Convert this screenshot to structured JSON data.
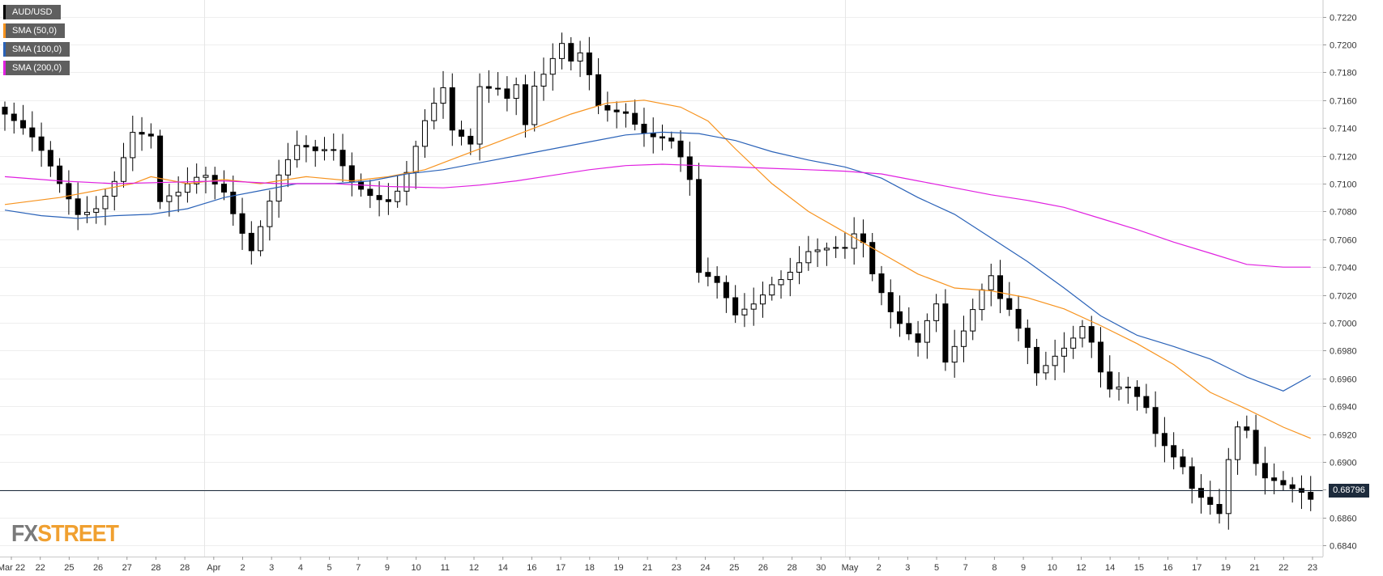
{
  "legend": {
    "items": [
      {
        "label": "AUD/USD",
        "color": "#000000"
      },
      {
        "label": "SMA (50,0)",
        "color": "#f7931e"
      },
      {
        "label": "SMA (100,0)",
        "color": "#2a62b8"
      },
      {
        "label": "SMA (200,0)",
        "color": "#e020e0"
      }
    ]
  },
  "logo": {
    "fx": "FX",
    "street": "STREET"
  },
  "current_price": {
    "label": "0.68796",
    "value": 0.68796
  },
  "chart_data": {
    "type": "candlestick",
    "symbol": "AUD/USD",
    "ylim": [
      0.6832,
      0.7232
    ],
    "yticks": [
      "0.7220",
      "0.7200",
      "0.7180",
      "0.7160",
      "0.7140",
      "0.7120",
      "0.7100",
      "0.7080",
      "0.7060",
      "0.7040",
      "0.7020",
      "0.7000",
      "0.6980",
      "0.6960",
      "0.6940",
      "0.6920",
      "0.6900",
      "0.6880",
      "0.6860",
      "0.6840"
    ],
    "xticks": [
      "Mar 22",
      "22",
      "25",
      "26",
      "27",
      "28",
      "28",
      "Apr",
      "2",
      "3",
      "4",
      "5",
      "7",
      "9",
      "10",
      "11",
      "12",
      "14",
      "16",
      "17",
      "18",
      "19",
      "21",
      "23",
      "24",
      "25",
      "26",
      "28",
      "30",
      "May",
      "2",
      "3",
      "5",
      "7",
      "8",
      "9",
      "10",
      "12",
      "14",
      "15",
      "16",
      "17",
      "19",
      "21",
      "22",
      "23"
    ],
    "gridlines": true,
    "close_path": [
      [
        0,
        0.715
      ],
      [
        3,
        0.7125
      ],
      [
        6,
        0.7095
      ],
      [
        8,
        0.708
      ],
      [
        10,
        0.709
      ],
      [
        12,
        0.711
      ],
      [
        14,
        0.714
      ],
      [
        16,
        0.713
      ],
      [
        17,
        0.708
      ],
      [
        19,
        0.7085
      ],
      [
        21,
        0.71
      ],
      [
        22,
        0.7105
      ],
      [
        24,
        0.71
      ],
      [
        27,
        0.706
      ],
      [
        29,
        0.709
      ],
      [
        30,
        0.7105
      ],
      [
        32,
        0.712
      ],
      [
        34,
        0.7115
      ],
      [
        36,
        0.712
      ],
      [
        38,
        0.7105
      ],
      [
        40,
        0.71
      ],
      [
        42,
        0.7095
      ],
      [
        43,
        0.71
      ],
      [
        44,
        0.711
      ],
      [
        46,
        0.714
      ],
      [
        48,
        0.716
      ],
      [
        49,
        0.713
      ],
      [
        51,
        0.7125
      ],
      [
        52,
        0.717
      ],
      [
        54,
        0.7175
      ],
      [
        55,
        0.717
      ],
      [
        56,
        0.718
      ],
      [
        57,
        0.715
      ],
      [
        58,
        0.7175
      ],
      [
        59,
        0.718
      ],
      [
        61,
        0.7195
      ],
      [
        62,
        0.718
      ],
      [
        63,
        0.7185
      ],
      [
        64,
        0.717
      ],
      [
        65,
        0.715
      ],
      [
        66,
        0.715
      ],
      [
        68,
        0.7155
      ],
      [
        70,
        0.7145
      ],
      [
        72,
        0.714
      ],
      [
        73,
        0.7135
      ],
      [
        74,
        0.712
      ],
      [
        75,
        0.71
      ],
      [
        76,
        0.703
      ],
      [
        78,
        0.702
      ],
      [
        80,
        0.7
      ],
      [
        82,
        0.7015
      ],
      [
        84,
        0.7035
      ],
      [
        86,
        0.7045
      ],
      [
        88,
        0.7055
      ],
      [
        90,
        0.705
      ],
      [
        92,
        0.7045
      ],
      [
        93,
        0.7055
      ],
      [
        94,
        0.705
      ],
      [
        95,
        0.703
      ],
      [
        97,
        0.701
      ],
      [
        99,
        0.7
      ],
      [
        100,
        0.6995
      ],
      [
        101,
        0.701
      ],
      [
        102,
        0.702
      ],
      [
        103,
        0.6975
      ],
      [
        105,
        0.699
      ],
      [
        107,
        0.7015
      ],
      [
        108,
        0.7025
      ],
      [
        109,
        0.701
      ],
      [
        110,
        0.7005
      ],
      [
        112,
        0.6985
      ],
      [
        113,
        0.697
      ],
      [
        115,
        0.6985
      ],
      [
        117,
        0.6995
      ],
      [
        118,
        0.7
      ],
      [
        119,
        0.6985
      ],
      [
        120,
        0.696
      ],
      [
        121,
        0.6945
      ],
      [
        123,
        0.6945
      ],
      [
        125,
        0.6935
      ],
      [
        126,
        0.692
      ],
      [
        127,
        0.6915
      ],
      [
        129,
        0.6905
      ],
      [
        130,
        0.689
      ],
      [
        132,
        0.6875
      ],
      [
        133,
        0.6865
      ],
      [
        134,
        0.69
      ],
      [
        135,
        0.692
      ],
      [
        136,
        0.6915
      ],
      [
        137,
        0.689
      ],
      [
        138,
        0.688
      ],
      [
        140,
        0.688
      ],
      [
        142,
        0.6882
      ],
      [
        143,
        0.688
      ]
    ],
    "series": [
      {
        "name": "SMA (50,0)",
        "color": "#f7931e",
        "points": [
          [
            0,
            0.7085
          ],
          [
            6,
            0.709
          ],
          [
            10,
            0.7095
          ],
          [
            14,
            0.71
          ],
          [
            16,
            0.7105
          ],
          [
            20,
            0.71
          ],
          [
            24,
            0.7103
          ],
          [
            28,
            0.71
          ],
          [
            33,
            0.7105
          ],
          [
            38,
            0.7102
          ],
          [
            42,
            0.7105
          ],
          [
            46,
            0.711
          ],
          [
            50,
            0.712
          ],
          [
            54,
            0.713
          ],
          [
            58,
            0.714
          ],
          [
            62,
            0.715
          ],
          [
            66,
            0.7158
          ],
          [
            70,
            0.716
          ],
          [
            74,
            0.7155
          ],
          [
            77,
            0.7145
          ],
          [
            80,
            0.7125
          ],
          [
            84,
            0.71
          ],
          [
            88,
            0.708
          ],
          [
            92,
            0.7065
          ],
          [
            96,
            0.705
          ],
          [
            100,
            0.7035
          ],
          [
            104,
            0.7025
          ],
          [
            108,
            0.7023
          ],
          [
            112,
            0.7018
          ],
          [
            116,
            0.701
          ],
          [
            120,
            0.6998
          ],
          [
            124,
            0.6985
          ],
          [
            128,
            0.697
          ],
          [
            132,
            0.695
          ],
          [
            136,
            0.6938
          ],
          [
            140,
            0.6925
          ],
          [
            143,
            0.6917
          ]
        ]
      },
      {
        "name": "SMA (100,0)",
        "color": "#2a62b8",
        "points": [
          [
            0,
            0.7081
          ],
          [
            4,
            0.7077
          ],
          [
            8,
            0.7075
          ],
          [
            12,
            0.7077
          ],
          [
            16,
            0.7078
          ],
          [
            20,
            0.7082
          ],
          [
            24,
            0.709
          ],
          [
            28,
            0.7095
          ],
          [
            32,
            0.71
          ],
          [
            36,
            0.71
          ],
          [
            40,
            0.7102
          ],
          [
            44,
            0.7107
          ],
          [
            48,
            0.711
          ],
          [
            52,
            0.7115
          ],
          [
            56,
            0.712
          ],
          [
            60,
            0.7125
          ],
          [
            64,
            0.713
          ],
          [
            68,
            0.7135
          ],
          [
            72,
            0.7137
          ],
          [
            76,
            0.7136
          ],
          [
            80,
            0.7131
          ],
          [
            84,
            0.7123
          ],
          [
            88,
            0.7117
          ],
          [
            92,
            0.7112
          ],
          [
            96,
            0.7104
          ],
          [
            100,
            0.709
          ],
          [
            104,
            0.7078
          ],
          [
            108,
            0.7061
          ],
          [
            112,
            0.7044
          ],
          [
            116,
            0.7025
          ],
          [
            120,
            0.7005
          ],
          [
            124,
            0.6991
          ],
          [
            128,
            0.6983
          ],
          [
            132,
            0.6974
          ],
          [
            136,
            0.6961
          ],
          [
            140,
            0.6951
          ],
          [
            143,
            0.6962
          ]
        ]
      },
      {
        "name": "SMA (200,0)",
        "color": "#e020e0",
        "points": [
          [
            0,
            0.7105
          ],
          [
            6,
            0.7102
          ],
          [
            12,
            0.71
          ],
          [
            18,
            0.7101
          ],
          [
            24,
            0.7102
          ],
          [
            30,
            0.71
          ],
          [
            36,
            0.71
          ],
          [
            42,
            0.7098
          ],
          [
            48,
            0.7097
          ],
          [
            52,
            0.7099
          ],
          [
            56,
            0.7102
          ],
          [
            60,
            0.7106
          ],
          [
            64,
            0.711
          ],
          [
            68,
            0.7113
          ],
          [
            72,
            0.7114
          ],
          [
            76,
            0.7113
          ],
          [
            80,
            0.7112
          ],
          [
            84,
            0.7111
          ],
          [
            88,
            0.711
          ],
          [
            92,
            0.7109
          ],
          [
            96,
            0.7107
          ],
          [
            100,
            0.7102
          ],
          [
            104,
            0.7097
          ],
          [
            108,
            0.7092
          ],
          [
            112,
            0.7088
          ],
          [
            116,
            0.7083
          ],
          [
            120,
            0.7075
          ],
          [
            124,
            0.7067
          ],
          [
            128,
            0.7058
          ],
          [
            132,
            0.705
          ],
          [
            136,
            0.7042
          ],
          [
            140,
            0.704
          ],
          [
            143,
            0.704
          ]
        ]
      }
    ]
  }
}
